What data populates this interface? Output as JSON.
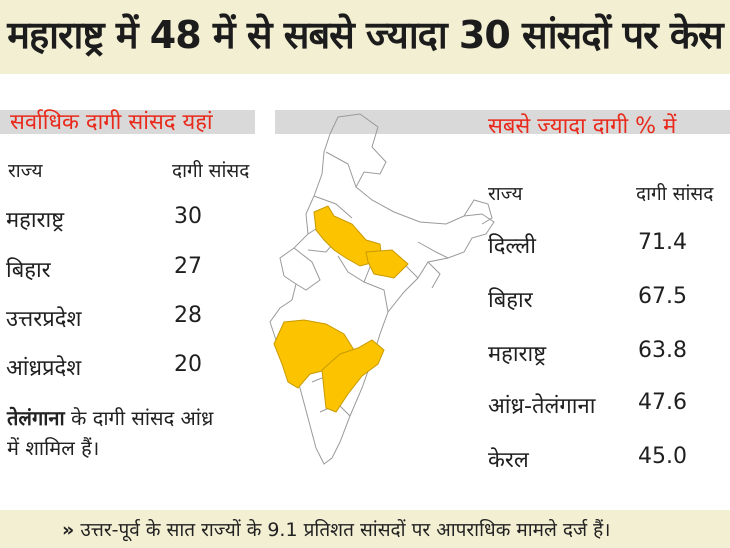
{
  "title": "महाराष्ट्र में 48 में से सबसे ज्यादा 30 सांसदों पर केस",
  "left_table": {
    "heading": "सर्वाधिक दागी सांसद यहां",
    "col_state": "राज्य",
    "col_value": "दागी सांसद",
    "rows": [
      {
        "state": "महाराष्ट्र",
        "value": "30"
      },
      {
        "state": "बिहार",
        "value": "27"
      },
      {
        "state": "उत्तरप्रदेश",
        "value": "28"
      },
      {
        "state": "आंध्रप्रदेश",
        "value": "20"
      }
    ],
    "note_bold": "तेलंगाना",
    "note_rest": " के दागी सांसद आंध्र में शामिल हैं।"
  },
  "right_table": {
    "heading": "सबसे ज्यादा दागी % में",
    "col_state": "राज्य",
    "col_value": "दागी सांसद",
    "rows": [
      {
        "state": "दिल्ली",
        "value": "71.4"
      },
      {
        "state": "बिहार",
        "value": "67.5"
      },
      {
        "state": "महाराष्ट्र",
        "value": "63.8"
      },
      {
        "state": "आंध्र-तेलंगाना",
        "value": "47.6"
      },
      {
        "state": "केरल",
        "value": "45.0"
      }
    ]
  },
  "footer": {
    "marker": "»",
    "text": "उत्तर-पूर्व के सात राज्यों के 9.1 प्रतिशत सांसदों पर आपराधिक मामले दर्ज हैं।"
  },
  "colors": {
    "heading_red": "#e8291b",
    "highlight_yellow": "#fbc300",
    "title_bg": "#f3efd3",
    "subheading_bg": "#d9d9d9"
  }
}
